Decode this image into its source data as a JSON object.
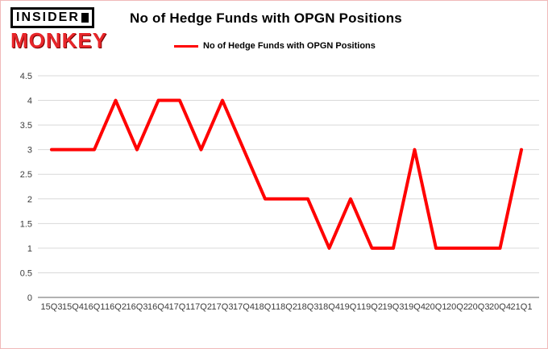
{
  "branding": {
    "line1": "INSIDER",
    "line2": "MONKEY"
  },
  "header": {
    "title": "No of Hedge Funds with OPGN Positions"
  },
  "legend": {
    "label": "No of Hedge Funds with OPGN Positions",
    "color": "#ff0000"
  },
  "chart_data": {
    "type": "line",
    "title": "No of Hedge Funds with OPGN Positions",
    "categories": [
      "15Q3",
      "15Q4",
      "16Q1",
      "16Q2",
      "16Q3",
      "16Q4",
      "17Q1",
      "17Q2",
      "17Q3",
      "17Q4",
      "18Q1",
      "18Q2",
      "18Q3",
      "18Q4",
      "19Q1",
      "19Q2",
      "19Q3",
      "19Q4",
      "20Q1",
      "20Q2",
      "20Q3",
      "20Q4",
      "21Q1"
    ],
    "values": [
      3,
      3,
      3,
      4,
      3,
      4,
      4,
      3,
      4,
      3,
      2,
      2,
      2,
      1,
      2,
      1,
      1,
      3,
      1,
      1,
      1,
      1,
      3
    ],
    "xlabel": "",
    "ylabel": "",
    "ylim": [
      0,
      4.5
    ],
    "ytick_step": 0.5,
    "line_color": "#ff0000",
    "grid_color": "#d9d9d9",
    "axis_color": "#666666",
    "grid": true,
    "legend_position": "top"
  }
}
